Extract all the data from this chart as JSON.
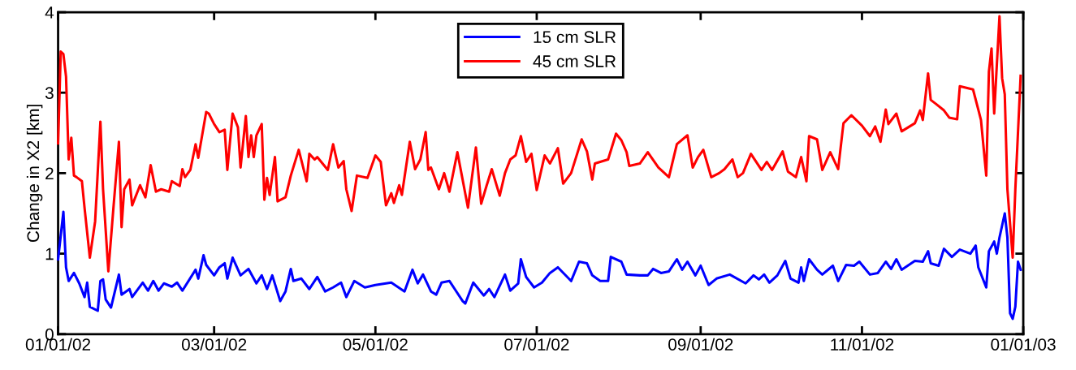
{
  "chart_data": {
    "type": "line",
    "ylabel": "Change in X2 [km]",
    "xlim": [
      "2002-01-01",
      "2003-01-01"
    ],
    "xticks": [
      {
        "value": "2002-01-01",
        "label": "01/01/02"
      },
      {
        "value": "2002-03-01",
        "label": "03/01/02"
      },
      {
        "value": "2002-05-01",
        "label": "05/01/02"
      },
      {
        "value": "2002-07-01",
        "label": "07/01/02"
      },
      {
        "value": "2002-09-01",
        "label": "09/01/02"
      },
      {
        "value": "2002-11-01",
        "label": "11/01/02"
      },
      {
        "value": "2003-01-01",
        "label": "01/01/03"
      }
    ],
    "ylim": [
      0,
      4
    ],
    "yticks": [
      0,
      1,
      2,
      3,
      4
    ],
    "grid": false,
    "legend": "top",
    "marker": "none",
    "line_style": "solid",
    "series": [
      {
        "name": "15 cm SLR",
        "color": "#0000ff",
        "x": [
          "2002-01-01",
          "2002-01-03",
          "2002-01-04",
          "2002-01-05",
          "2002-01-07",
          "2002-01-09",
          "2002-01-11",
          "2002-01-12",
          "2002-01-13",
          "2002-01-16",
          "2002-01-17",
          "2002-01-18",
          "2002-01-19",
          "2002-01-21",
          "2002-01-24",
          "2002-01-25",
          "2002-01-28",
          "2002-01-29",
          "2002-02-02",
          "2002-02-04",
          "2002-02-06",
          "2002-02-08",
          "2002-02-10",
          "2002-02-13",
          "2002-02-15",
          "2002-02-17",
          "2002-02-22",
          "2002-02-23",
          "2002-02-25",
          "2002-02-26",
          "2002-03-01",
          "2002-03-03",
          "2002-03-05",
          "2002-03-06",
          "2002-03-08",
          "2002-03-11",
          "2002-03-14",
          "2002-03-17",
          "2002-03-19",
          "2002-03-21",
          "2002-03-23",
          "2002-03-26",
          "2002-03-28",
          "2002-03-30",
          "2002-03-31",
          "2002-04-03",
          "2002-04-06",
          "2002-04-09",
          "2002-04-12",
          "2002-04-15",
          "2002-04-18",
          "2002-04-20",
          "2002-04-23",
          "2002-04-27",
          "2002-05-01",
          "2002-05-07",
          "2002-05-12",
          "2002-05-15",
          "2002-05-17",
          "2002-05-19",
          "2002-05-22",
          "2002-05-24",
          "2002-05-26",
          "2002-05-29",
          "2002-05-31",
          "2002-06-03",
          "2002-06-04",
          "2002-06-07",
          "2002-06-11",
          "2002-06-13",
          "2002-06-15",
          "2002-06-19",
          "2002-06-21",
          "2002-06-24",
          "2002-06-25",
          "2002-06-27",
          "2002-06-30",
          "2002-07-03",
          "2002-07-06",
          "2002-07-09",
          "2002-07-14",
          "2002-07-17",
          "2002-07-20",
          "2002-07-22",
          "2002-07-25",
          "2002-07-28",
          "2002-07-29",
          "2002-08-02",
          "2002-08-04",
          "2002-08-09",
          "2002-08-12",
          "2002-08-14",
          "2002-08-17",
          "2002-08-20",
          "2002-08-23",
          "2002-08-25",
          "2002-08-27",
          "2002-08-30",
          "2002-09-01",
          "2002-09-04",
          "2002-09-07",
          "2002-09-12",
          "2002-09-18",
          "2002-09-21",
          "2002-09-23",
          "2002-09-25",
          "2002-09-27",
          "2002-09-30",
          "2002-10-03",
          "2002-10-05",
          "2002-10-08",
          "2002-10-09",
          "2002-10-10",
          "2002-10-12",
          "2002-10-15",
          "2002-10-17",
          "2002-10-21",
          "2002-10-23",
          "2002-10-26",
          "2002-10-29",
          "2002-10-31",
          "2002-11-04",
          "2002-11-07",
          "2002-11-10",
          "2002-11-12",
          "2002-11-14",
          "2002-11-16",
          "2002-11-21",
          "2002-11-24",
          "2002-11-26",
          "2002-11-27",
          "2002-11-30",
          "2002-12-02",
          "2002-12-05",
          "2002-12-08",
          "2002-12-12",
          "2002-12-14",
          "2002-12-15",
          "2002-12-18",
          "2002-12-19",
          "2002-12-21",
          "2002-12-22",
          "2002-12-23",
          "2002-12-25",
          "2002-12-26",
          "2002-12-27",
          "2002-12-28",
          "2002-12-29",
          "2002-12-30",
          "2002-12-31"
        ],
        "values": [
          0.93,
          1.52,
          0.83,
          0.66,
          0.76,
          0.63,
          0.46,
          0.64,
          0.34,
          0.29,
          0.66,
          0.68,
          0.43,
          0.33,
          0.74,
          0.49,
          0.56,
          0.46,
          0.64,
          0.54,
          0.66,
          0.54,
          0.63,
          0.59,
          0.64,
          0.54,
          0.8,
          0.69,
          0.98,
          0.86,
          0.73,
          0.83,
          0.88,
          0.69,
          0.95,
          0.73,
          0.81,
          0.63,
          0.73,
          0.56,
          0.73,
          0.41,
          0.53,
          0.81,
          0.66,
          0.69,
          0.56,
          0.71,
          0.53,
          0.58,
          0.64,
          0.46,
          0.66,
          0.58,
          0.61,
          0.64,
          0.53,
          0.8,
          0.63,
          0.74,
          0.53,
          0.49,
          0.64,
          0.66,
          0.56,
          0.41,
          0.38,
          0.64,
          0.48,
          0.56,
          0.46,
          0.74,
          0.54,
          0.63,
          0.93,
          0.71,
          0.58,
          0.64,
          0.76,
          0.83,
          0.66,
          0.9,
          0.88,
          0.73,
          0.66,
          0.66,
          0.96,
          0.9,
          0.74,
          0.73,
          0.73,
          0.81,
          0.76,
          0.78,
          0.93,
          0.8,
          0.9,
          0.73,
          0.85,
          0.61,
          0.69,
          0.74,
          0.63,
          0.73,
          0.68,
          0.74,
          0.64,
          0.73,
          0.91,
          0.69,
          0.64,
          0.83,
          0.66,
          0.93,
          0.8,
          0.74,
          0.85,
          0.66,
          0.86,
          0.85,
          0.9,
          0.74,
          0.76,
          0.9,
          0.81,
          0.93,
          0.8,
          0.91,
          0.9,
          1.03,
          0.88,
          0.85,
          1.06,
          0.96,
          1.05,
          1.0,
          1.1,
          0.83,
          0.58,
          1.03,
          1.15,
          1.0,
          1.2,
          1.5,
          1.2,
          0.26,
          0.19,
          0.34,
          0.9,
          0.8
        ]
      },
      {
        "name": "45 cm SLR",
        "color": "#ff0000",
        "x": [
          "2002-01-01",
          "2002-01-02",
          "2002-01-03",
          "2002-01-04",
          "2002-01-05",
          "2002-01-06",
          "2002-01-07",
          "2002-01-08",
          "2002-01-10",
          "2002-01-11",
          "2002-01-13",
          "2002-01-15",
          "2002-01-17",
          "2002-01-18",
          "2002-01-20",
          "2002-01-22",
          "2002-01-24",
          "2002-01-25",
          "2002-01-26",
          "2002-01-28",
          "2002-01-29",
          "2002-02-01",
          "2002-02-03",
          "2002-02-05",
          "2002-02-07",
          "2002-02-09",
          "2002-02-12",
          "2002-02-13",
          "2002-02-16",
          "2002-02-17",
          "2002-02-18",
          "2002-02-20",
          "2002-02-22",
          "2002-02-23",
          "2002-02-26",
          "2002-02-27",
          "2002-03-01",
          "2002-03-03",
          "2002-03-05",
          "2002-03-06",
          "2002-03-08",
          "2002-03-10",
          "2002-03-11",
          "2002-03-13",
          "2002-03-14",
          "2002-03-15",
          "2002-03-16",
          "2002-03-17",
          "2002-03-19",
          "2002-03-20",
          "2002-03-21",
          "2002-03-22",
          "2002-03-24",
          "2002-03-25",
          "2002-03-28",
          "2002-03-30",
          "2002-04-02",
          "2002-04-05",
          "2002-04-06",
          "2002-04-08",
          "2002-04-09",
          "2002-04-13",
          "2002-04-15",
          "2002-04-17",
          "2002-04-19",
          "2002-04-20",
          "2002-04-22",
          "2002-04-24",
          "2002-04-28",
          "2002-05-01",
          "2002-05-03",
          "2002-05-05",
          "2002-05-07",
          "2002-05-08",
          "2002-05-10",
          "2002-05-11",
          "2002-05-14",
          "2002-05-16",
          "2002-05-18",
          "2002-05-20",
          "2002-05-21",
          "2002-05-22",
          "2002-05-25",
          "2002-05-27",
          "2002-05-29",
          "2002-06-01",
          "2002-06-05",
          "2002-06-08",
          "2002-06-10",
          "2002-06-12",
          "2002-06-14",
          "2002-06-17",
          "2002-06-19",
          "2002-06-21",
          "2002-06-23",
          "2002-06-25",
          "2002-06-27",
          "2002-06-29",
          "2002-07-01",
          "2002-07-04",
          "2002-07-06",
          "2002-07-09",
          "2002-07-11",
          "2002-07-14",
          "2002-07-18",
          "2002-07-20",
          "2002-07-22",
          "2002-07-23",
          "2002-07-28",
          "2002-07-31",
          "2002-08-02",
          "2002-08-04",
          "2002-08-05",
          "2002-08-09",
          "2002-08-12",
          "2002-08-16",
          "2002-08-20",
          "2002-08-23",
          "2002-08-27",
          "2002-08-29",
          "2002-08-31",
          "2002-09-02",
          "2002-09-05",
          "2002-09-08",
          "2002-09-10",
          "2002-09-13",
          "2002-09-15",
          "2002-09-17",
          "2002-09-20",
          "2002-09-24",
          "2002-09-26",
          "2002-09-28",
          "2002-10-02",
          "2002-10-04",
          "2002-10-07",
          "2002-10-09",
          "2002-10-11",
          "2002-10-12",
          "2002-10-15",
          "2002-10-17",
          "2002-10-20",
          "2002-10-23",
          "2002-10-25",
          "2002-10-28",
          "2002-11-01",
          "2002-11-04",
          "2002-11-06",
          "2002-11-08",
          "2002-11-10",
          "2002-11-11",
          "2002-11-14",
          "2002-11-16",
          "2002-11-21",
          "2002-11-23",
          "2002-11-24",
          "2002-11-26",
          "2002-11-27",
          "2002-11-29",
          "2002-12-02",
          "2002-12-04",
          "2002-12-07",
          "2002-12-08",
          "2002-12-13",
          "2002-12-15",
          "2002-12-16",
          "2002-12-18",
          "2002-12-19",
          "2002-12-20",
          "2002-12-21",
          "2002-12-23",
          "2002-12-24",
          "2002-12-25",
          "2002-12-26",
          "2002-12-28",
          "2002-12-29",
          "2002-12-31"
        ],
        "values": [
          2.37,
          3.51,
          3.48,
          3.2,
          2.17,
          2.44,
          1.97,
          1.95,
          1.9,
          1.57,
          0.95,
          1.4,
          2.64,
          1.8,
          0.78,
          1.6,
          2.39,
          1.33,
          1.8,
          1.92,
          1.6,
          1.85,
          1.7,
          2.1,
          1.77,
          1.8,
          1.77,
          1.9,
          1.84,
          2.05,
          1.95,
          2.04,
          2.36,
          2.19,
          2.76,
          2.74,
          2.61,
          2.51,
          2.54,
          2.04,
          2.74,
          2.57,
          2.07,
          2.71,
          2.2,
          2.47,
          2.2,
          2.47,
          2.61,
          1.67,
          1.94,
          1.73,
          2.2,
          1.65,
          1.7,
          1.97,
          2.29,
          1.9,
          2.24,
          2.17,
          2.2,
          2.04,
          2.36,
          2.07,
          2.15,
          1.8,
          1.53,
          1.97,
          1.94,
          2.22,
          2.14,
          1.6,
          1.75,
          1.63,
          1.85,
          1.73,
          2.39,
          2.05,
          2.17,
          2.51,
          2.04,
          2.07,
          1.8,
          2.0,
          1.77,
          2.26,
          1.57,
          2.32,
          1.62,
          1.84,
          2.05,
          1.72,
          2.0,
          2.17,
          2.22,
          2.46,
          2.14,
          2.24,
          1.79,
          2.22,
          2.12,
          2.31,
          1.87,
          2.0,
          2.42,
          2.27,
          1.92,
          2.12,
          2.17,
          2.49,
          2.41,
          2.26,
          2.09,
          2.12,
          2.26,
          2.07,
          1.95,
          2.36,
          2.47,
          2.07,
          2.2,
          2.29,
          1.95,
          2.0,
          2.05,
          2.17,
          1.95,
          2.0,
          2.24,
          2.04,
          2.14,
          2.04,
          2.27,
          2.02,
          1.95,
          2.2,
          1.9,
          2.46,
          2.42,
          2.04,
          2.26,
          2.05,
          2.62,
          2.72,
          2.59,
          2.46,
          2.58,
          2.39,
          2.79,
          2.61,
          2.74,
          2.52,
          2.62,
          2.78,
          2.66,
          3.24,
          2.91,
          2.86,
          2.78,
          2.69,
          2.67,
          3.08,
          3.04,
          2.79,
          2.66,
          1.97,
          3.26,
          3.55,
          2.74,
          3.95,
          3.18,
          2.98,
          1.8,
          0.95,
          1.8,
          3.21
        ]
      }
    ]
  }
}
